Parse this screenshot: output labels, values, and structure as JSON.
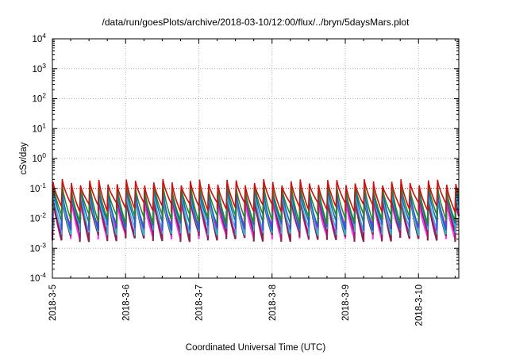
{
  "chart_data": {
    "type": "line",
    "title": "/data/run/goesPlots/archive/2018-03-10/12:00/flux/../bryn/5daysMars.plot",
    "xlabel": "Coordinated Universal Time (UTC)",
    "ylabel": "cSv/day",
    "x_tick_labels": [
      "2018-3-5",
      "2018-3-6",
      "2018-3-7",
      "2018-3-8",
      "2018-3-9",
      "2018-3-10"
    ],
    "x_range_days": [
      0,
      5.55
    ],
    "y_scale": "log",
    "ylim": [
      0.0001,
      10000
    ],
    "y_tick_labels": [
      {
        "base": "10",
        "exp": "-4"
      },
      {
        "base": "10",
        "exp": "-3"
      },
      {
        "base": "10",
        "exp": "-2"
      },
      {
        "base": "10",
        "exp": "-1"
      },
      {
        "base": "10",
        "exp": "0"
      },
      {
        "base": "10",
        "exp": "1"
      },
      {
        "base": "10",
        "exp": "2"
      },
      {
        "base": "10",
        "exp": "3"
      },
      {
        "base": "10",
        "exp": "4"
      }
    ],
    "grid": true,
    "pattern": {
      "cycles_per_day": 8,
      "peak_values": [
        0.17,
        0.13,
        0.1,
        0.08,
        0.07,
        0.06,
        0.05
      ],
      "trough_values": [
        0.025,
        0.01,
        0.006,
        0.004,
        0.0025,
        0.004,
        0.003
      ],
      "colors": [
        "#cc1010",
        "#228b22",
        "#1f5fd6",
        "#22c0d0",
        "#8b2252",
        "#ff00ff",
        "#ff33ff"
      ]
    }
  }
}
